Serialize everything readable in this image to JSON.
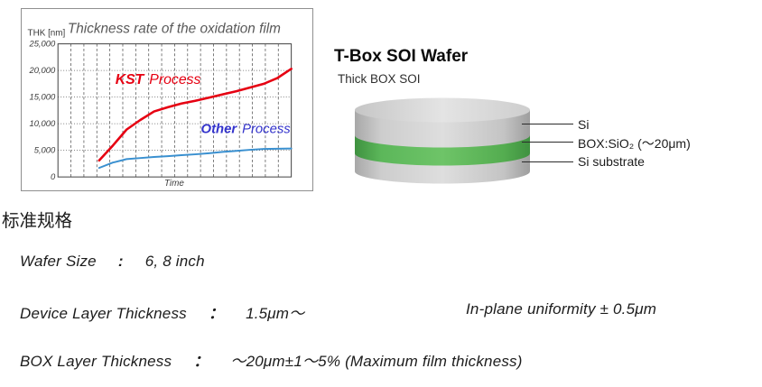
{
  "chart": {
    "title": "Thickness rate of the oxidation film",
    "y_axis_unit": "THK [nm]",
    "x_axis_label": "Time",
    "series_labels": {
      "kst_bold": "KST",
      "kst_rest": "Process",
      "other_bold": "Other",
      "other_rest": "Process"
    },
    "colors": {
      "kst": "#e60012",
      "other": "#3a90d0",
      "other_label_text": "#3333cc"
    }
  },
  "chart_data": {
    "type": "line",
    "title": "Thickness rate of the oxidation film",
    "xlabel": "Time",
    "ylabel": "THK [nm]",
    "xlim": [
      0,
      17
    ],
    "ylim": [
      0,
      25000
    ],
    "yticks": [
      0,
      5000,
      10000,
      15000,
      20000,
      25000
    ],
    "ytick_labels": [
      "0",
      "5,000",
      "10,000",
      "15,000",
      "20,000",
      "25,000"
    ],
    "grid": true,
    "legend_position": "inline-annotations",
    "x": [
      3,
      4,
      5,
      6,
      7,
      8,
      9,
      10,
      11,
      12,
      13,
      14,
      15,
      16,
      17
    ],
    "series": [
      {
        "name": "KST Process",
        "color": "#e60012",
        "width": 2.6,
        "values": [
          3100,
          5900,
          8900,
          10700,
          12300,
          13100,
          13800,
          14300,
          14900,
          15500,
          16100,
          16800,
          17500,
          18600,
          20300
        ]
      },
      {
        "name": "Other Process",
        "color": "#3a90d0",
        "width": 2.0,
        "values": [
          1700,
          2700,
          3350,
          3550,
          3750,
          3900,
          4100,
          4250,
          4450,
          4700,
          4900,
          5100,
          5250,
          5300,
          5350
        ]
      }
    ]
  },
  "wafer": {
    "heading": "T-Box SOI Wafer",
    "subheading": "Thick BOX SOI",
    "labels": [
      "Si",
      "BOX:SiO₂ (～20μm)",
      "Si substrate"
    ],
    "colors": {
      "body_gray": "#cfcfcf",
      "top_gray": "#dedede",
      "box_green": "#58b253"
    }
  },
  "specs": {
    "heading": "标准规格",
    "rows": [
      {
        "label": "Wafer Size",
        "colon": ":",
        "value": "6, 8 inch",
        "extra": ""
      },
      {
        "label": "Device Layer Thickness",
        "colon": "：",
        "value": "1.5μm～",
        "extra": "In-plane uniformity ± 0.5μm"
      },
      {
        "label": "BOX Layer Thickness",
        "colon": "：",
        "value": "～20μm±1～5% (Maximum film thickness)",
        "extra": ""
      }
    ]
  }
}
